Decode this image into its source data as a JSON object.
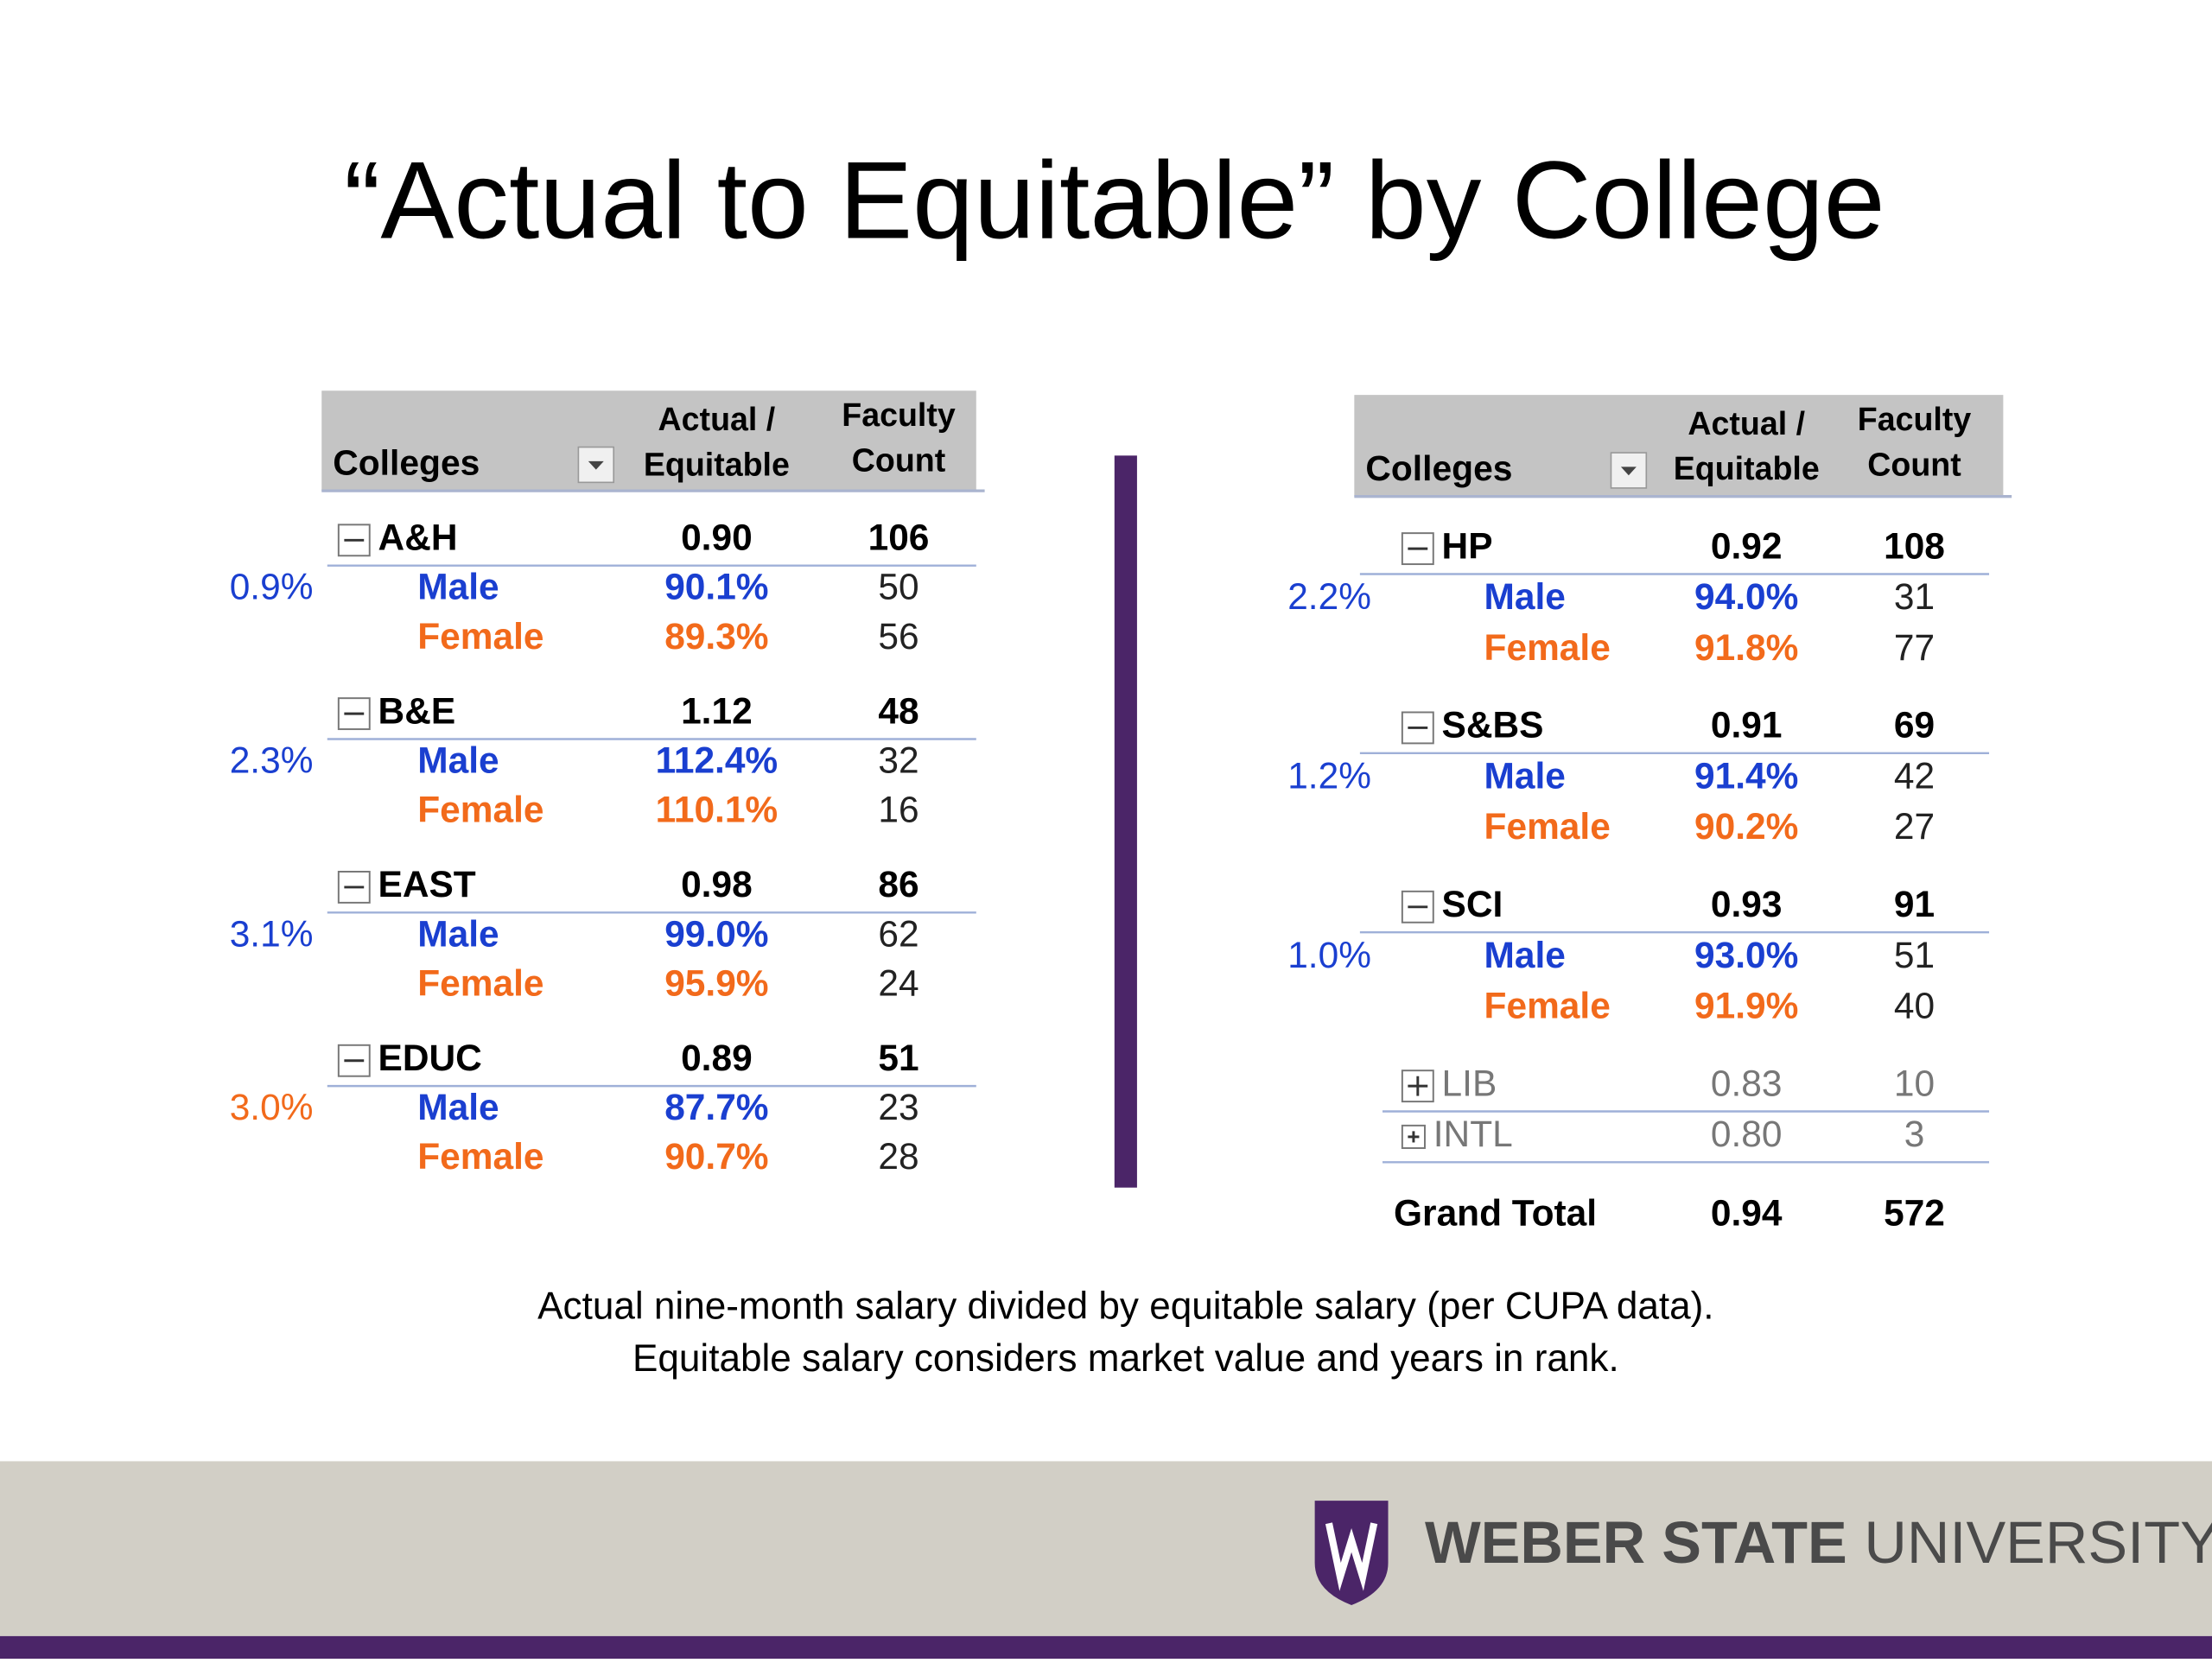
{
  "title": "“Actual to Equitable” by College",
  "tables": [
    {
      "headers": {
        "college": "Colleges",
        "ratio": [
          "Actual /",
          "Equitable"
        ],
        "count": [
          "Faculty",
          "Count"
        ]
      },
      "groups": [
        {
          "college": "A&H",
          "ratio": "0.90",
          "count": "106",
          "gap": "0.9%",
          "gap_color": "#1a3fd0",
          "rows": [
            [
              "Male",
              "90.1%",
              "50"
            ],
            [
              "Female",
              "89.3%",
              "56"
            ]
          ]
        },
        {
          "college": "B&E",
          "ratio": "1.12",
          "count": "48",
          "gap": "2.3%",
          "gap_color": "#1a3fd0",
          "rows": [
            [
              "Male",
              "112.4%",
              "32"
            ],
            [
              "Female",
              "110.1%",
              "16"
            ]
          ]
        },
        {
          "college": "EAST",
          "ratio": "0.98",
          "count": "86",
          "gap": "3.1%",
          "gap_color": "#1a3fd0",
          "rows": [
            [
              "Male",
              "99.0%",
              "62"
            ],
            [
              "Female",
              "95.9%",
              "24"
            ]
          ]
        },
        {
          "college": "EDUC",
          "ratio": "0.89",
          "count": "51",
          "gap": "3.0%",
          "gap_color": "#f26a1b",
          "rows": [
            [
              "Male",
              "87.7%",
              "23"
            ],
            [
              "Female",
              "90.7%",
              "28"
            ]
          ]
        }
      ]
    },
    {
      "headers": {
        "college": "Colleges",
        "ratio": [
          "Actual /",
          "Equitable"
        ],
        "count": [
          "Faculty",
          "Count"
        ]
      },
      "groups": [
        {
          "college": "HP",
          "ratio": "0.92",
          "count": "108",
          "gap": "2.2%",
          "gap_color": "#1a3fd0",
          "rows": [
            [
              "Male",
              "94.0%",
              "31"
            ],
            [
              "Female",
              "91.8%",
              "77"
            ]
          ]
        },
        {
          "college": "S&BS",
          "ratio": "0.91",
          "count": "69",
          "gap": "1.2%",
          "gap_color": "#1a3fd0",
          "rows": [
            [
              "Male",
              "91.4%",
              "42"
            ],
            [
              "Female",
              "90.2%",
              "27"
            ]
          ]
        },
        {
          "college": "SCI",
          "ratio": "0.93",
          "count": "91",
          "gap": "1.0%",
          "gap_color": "#1a3fd0",
          "rows": [
            [
              "Male",
              "93.0%",
              "51"
            ],
            [
              "Female",
              "91.9%",
              "40"
            ]
          ]
        }
      ],
      "collapsed": [
        [
          "LIB",
          "0.83",
          "10"
        ],
        [
          "INTL",
          "0.80",
          "3"
        ]
      ],
      "grand_total": [
        "Grand Total",
        "0.94",
        "572"
      ]
    }
  ],
  "footnote": [
    "Actual nine-month salary divided by equitable salary (per CUPA data).",
    "Equitable salary considers market value and years in rank."
  ],
  "logo": [
    "WEBER STATE",
    "UNIVERSITY"
  ]
}
